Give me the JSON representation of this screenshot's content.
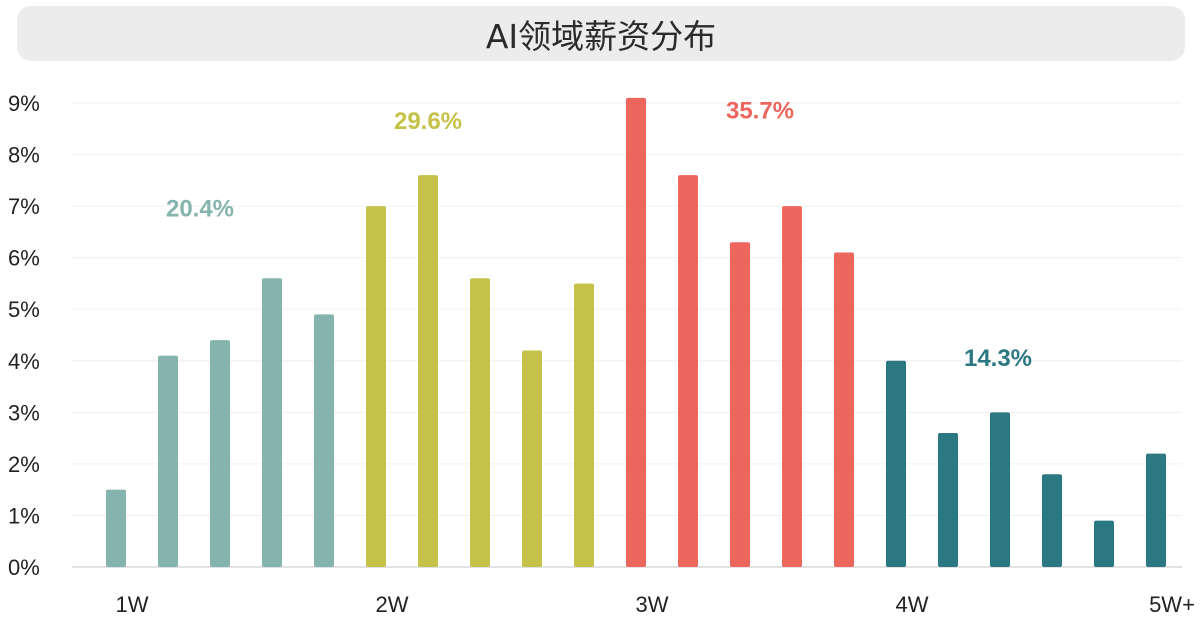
{
  "chart_data": {
    "type": "bar",
    "title": "AI领域薪资分布",
    "xlabel": "",
    "ylabel": "",
    "ylim": [
      0,
      9
    ],
    "y_ticks": [
      "0%",
      "1%",
      "2%",
      "3%",
      "4%",
      "5%",
      "6%",
      "7%",
      "8%",
      "9%"
    ],
    "x_tick_labels": [
      {
        "label": "1W",
        "at_bar": 0
      },
      {
        "label": "2W",
        "at_bar": 5
      },
      {
        "label": "3W",
        "at_bar": 10
      },
      {
        "label": "4W",
        "at_bar": 15
      },
      {
        "label": "5W+",
        "at_bar": 20
      }
    ],
    "values": [
      1.5,
      4.1,
      4.4,
      5.6,
      4.9,
      7.0,
      7.6,
      5.6,
      4.2,
      5.5,
      9.1,
      7.6,
      6.3,
      7.0,
      6.1,
      4.0,
      2.6,
      3.0,
      1.8,
      0.9,
      2.2
    ],
    "groups": [
      {
        "label": "20.4%",
        "color": "#85b3ad",
        "start": 0,
        "end": 4
      },
      {
        "label": "29.6%",
        "color": "#c5c24a",
        "start": 5,
        "end": 9
      },
      {
        "label": "35.7%",
        "color": "#ec665d",
        "start": 10,
        "end": 14
      },
      {
        "label": "14.3%",
        "color": "#2b7782",
        "start": 15,
        "end": 20
      }
    ],
    "grid": true,
    "legend": "none"
  }
}
